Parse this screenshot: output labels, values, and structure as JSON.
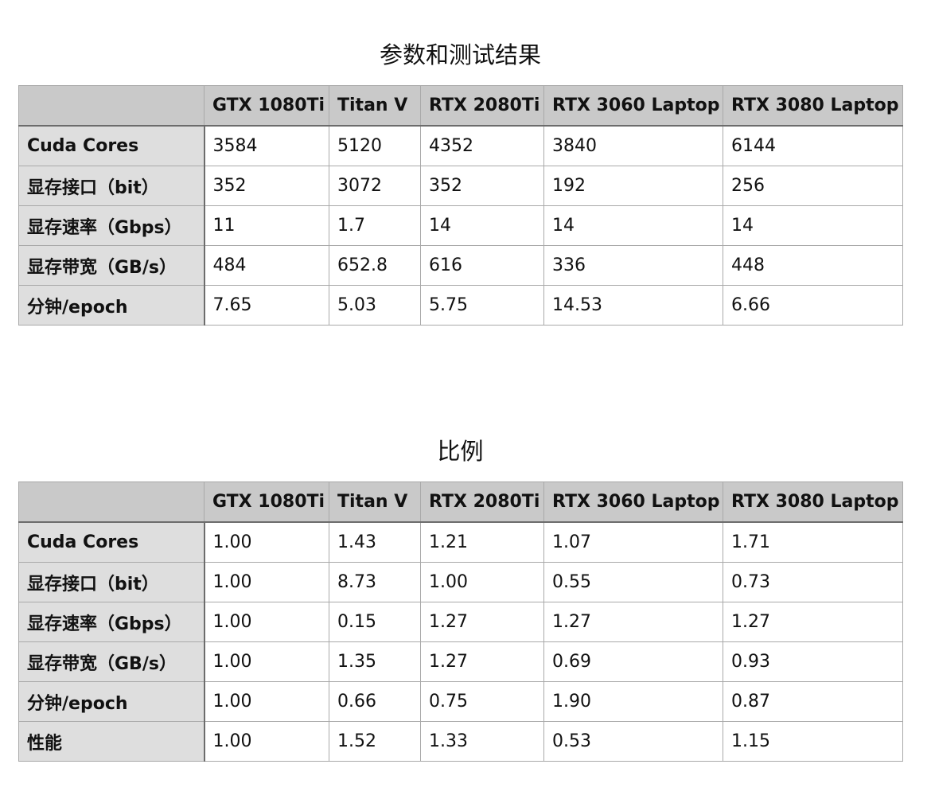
{
  "columns": [
    "",
    "GTX 1080Ti",
    "Titan V",
    "RTX 2080Ti",
    "RTX 3060 Laptop",
    "RTX 3080 Laptop"
  ],
  "tables": [
    {
      "title": "参数和测试结果",
      "rows": [
        {
          "label": "Cuda Cores",
          "values": [
            "3584",
            "5120",
            "4352",
            "3840",
            "6144"
          ]
        },
        {
          "label": "显存接口（bit）",
          "values": [
            "352",
            "3072",
            "352",
            "192",
            "256"
          ]
        },
        {
          "label": "显存速率（Gbps）",
          "values": [
            "11",
            "1.7",
            "14",
            "14",
            "14"
          ]
        },
        {
          "label": "显存带宽（GB/s）",
          "values": [
            "484",
            "652.8",
            "616",
            "336",
            "448"
          ]
        },
        {
          "label": "分钟/epoch",
          "values": [
            "7.65",
            "5.03",
            "5.75",
            "14.53",
            "6.66"
          ]
        }
      ]
    },
    {
      "title": "比例",
      "rows": [
        {
          "label": "Cuda Cores",
          "values": [
            "1.00",
            "1.43",
            "1.21",
            "1.07",
            "1.71"
          ]
        },
        {
          "label": "显存接口（bit）",
          "values": [
            "1.00",
            "8.73",
            "1.00",
            "0.55",
            "0.73"
          ]
        },
        {
          "label": "显存速率（Gbps）",
          "values": [
            "1.00",
            "0.15",
            "1.27",
            "1.27",
            "1.27"
          ]
        },
        {
          "label": "显存带宽（GB/s）",
          "values": [
            "1.00",
            "1.35",
            "1.27",
            "0.69",
            "0.93"
          ]
        },
        {
          "label": "分钟/epoch",
          "values": [
            "1.00",
            "0.66",
            "0.75",
            "1.90",
            "0.87"
          ]
        },
        {
          "label": "性能",
          "values": [
            "1.00",
            "1.52",
            "1.33",
            "0.53",
            "1.15"
          ]
        }
      ]
    }
  ],
  "colors": {
    "header_bg": "#c9c9c9",
    "row_header_bg": "#dedede",
    "cell_bg": "#ffffff",
    "grid_line": "#a9a9a9",
    "strong_line": "#6c6c6c"
  }
}
